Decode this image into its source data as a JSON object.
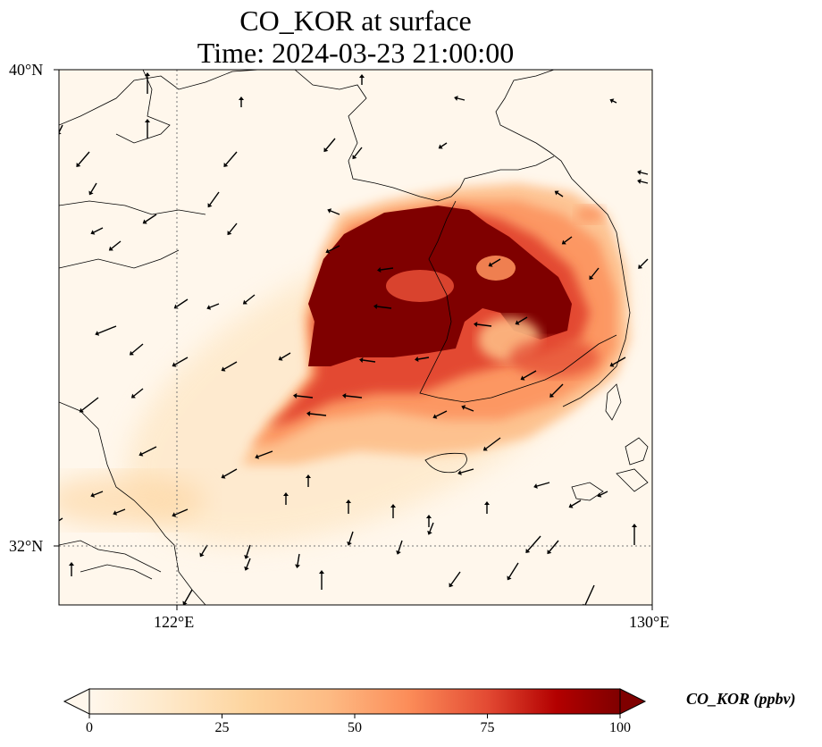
{
  "title": {
    "line1": "CO_KOR at surface",
    "line2": "Time: 2024-03-23 21:00:00"
  },
  "axes": {
    "lat_labels": [
      "40°N",
      "32°N"
    ],
    "lon_labels": [
      "122°E",
      "130°E"
    ],
    "lat_range": [
      31,
      40
    ],
    "lon_range": [
      120,
      130
    ],
    "gridlines": "dotted, at 122°E and 32°N"
  },
  "colorbar": {
    "label": "CO_KOR (ppbv)",
    "ticks": [
      "0",
      "25",
      "50",
      "75",
      "100"
    ],
    "min": 0,
    "max": 100,
    "colormap": "OrRd",
    "extend": "both"
  },
  "colors": {
    "low": "#fff7ec",
    "mid": "#fdbb84",
    "high": "#d7301f",
    "max": "#7f0000"
  },
  "plume": {
    "description_hidden": false,
    "peak_value": 100,
    "background_value": 3
  }
}
